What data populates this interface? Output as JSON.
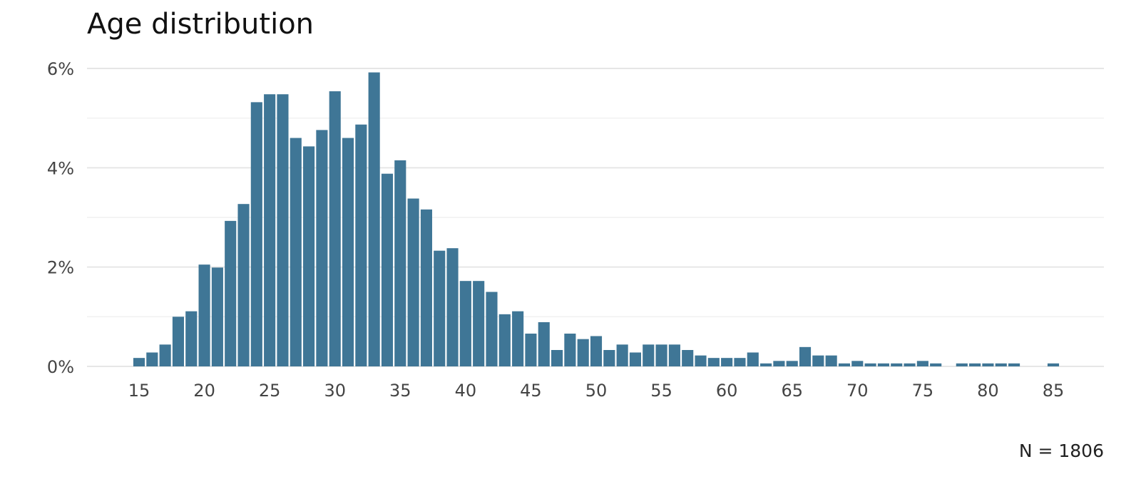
{
  "chart_data": {
    "type": "bar",
    "title": "Age distribution",
    "caption": "N = 1806",
    "xlabel": "",
    "ylabel": "",
    "x": [
      15,
      16,
      17,
      18,
      19,
      20,
      21,
      22,
      23,
      24,
      25,
      26,
      27,
      28,
      29,
      30,
      31,
      32,
      33,
      34,
      35,
      36,
      37,
      38,
      39,
      40,
      41,
      42,
      43,
      44,
      45,
      46,
      47,
      48,
      49,
      50,
      51,
      52,
      53,
      54,
      55,
      56,
      57,
      58,
      59,
      60,
      61,
      62,
      63,
      64,
      65,
      66,
      67,
      68,
      69,
      70,
      71,
      72,
      73,
      74,
      75,
      76,
      77,
      78,
      79,
      80,
      81,
      82,
      83,
      84,
      85
    ],
    "values": [
      0.17,
      0.28,
      0.44,
      1.0,
      1.11,
      2.05,
      1.99,
      2.93,
      3.27,
      5.32,
      5.48,
      5.48,
      4.6,
      4.43,
      4.76,
      5.54,
      4.6,
      4.87,
      5.92,
      3.88,
      4.15,
      3.38,
      3.16,
      2.33,
      2.38,
      1.72,
      1.72,
      1.5,
      1.05,
      1.11,
      0.66,
      0.89,
      0.33,
      0.66,
      0.55,
      0.61,
      0.33,
      0.44,
      0.28,
      0.44,
      0.44,
      0.44,
      0.33,
      0.22,
      0.17,
      0.17,
      0.17,
      0.28,
      0.06,
      0.11,
      0.11,
      0.39,
      0.22,
      0.22,
      0.06,
      0.11,
      0.06,
      0.06,
      0.06,
      0.06,
      0.11,
      0.06,
      0,
      0.06,
      0.06,
      0.06,
      0.06,
      0.06,
      0,
      0,
      0.06
    ],
    "xticks": [
      15,
      20,
      25,
      30,
      35,
      40,
      45,
      50,
      55,
      60,
      65,
      70,
      75,
      80,
      85
    ],
    "yticks": [
      0,
      2,
      4,
      6
    ],
    "ytick_labels": [
      "0%",
      "2%",
      "4%",
      "6%"
    ],
    "xlim": [
      12,
      88
    ],
    "ylim": [
      0,
      6
    ],
    "grid": true,
    "bar_color": "#3f7696"
  }
}
